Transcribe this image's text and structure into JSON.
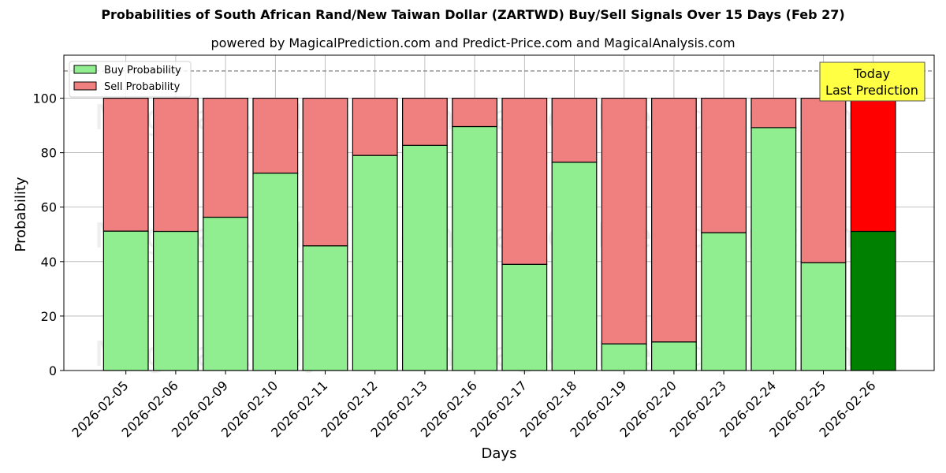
{
  "header": {
    "title": "Probabilities of South African Rand/New Taiwan Dollar (ZARTWD) Buy/Sell Signals Over 15 Days (Feb 27)",
    "subtitle": "powered by MagicalPrediction.com and Predict-Price.com and MagicalAnalysis.com"
  },
  "legend": {
    "items": [
      {
        "label": "Buy Probability",
        "color": "#90ee90"
      },
      {
        "label": "Sell Probability",
        "color": "#f08080"
      }
    ]
  },
  "annotation": {
    "line1": "Today",
    "line2": "Last Prediction",
    "bg_color": "#ffff44"
  },
  "watermarks": {
    "left": "MagicalAnalysis.com",
    "right": "MagicalPrediction.com"
  },
  "colors": {
    "buy": "#90ee90",
    "sell": "#f08080",
    "buy_today": "#008000",
    "sell_today": "#ff0000",
    "grid": "#b0b0b0"
  },
  "chart_data": {
    "type": "bar",
    "stacked": true,
    "title": "Probabilities of South African Rand/New Taiwan Dollar (ZARTWD) Buy/Sell Signals Over 15 Days (Feb 27)",
    "subtitle": "powered by MagicalPrediction.com and Predict-Price.com and MagicalAnalysis.com",
    "xlabel": "Days",
    "ylabel": "Probability",
    "ylim": [
      0,
      115.8
    ],
    "yticks": [
      0,
      20,
      40,
      60,
      80,
      100
    ],
    "grid": true,
    "legend_position": "upper left",
    "reference_line": {
      "y": 110,
      "style": "dashed",
      "color": "#808080"
    },
    "categories": [
      "2026-02-05",
      "2026-02-06",
      "2026-02-09",
      "2026-02-10",
      "2026-02-11",
      "2026-02-12",
      "2026-02-13",
      "2026-02-16",
      "2026-02-17",
      "2026-02-18",
      "2026-02-19",
      "2026-02-20",
      "2026-02-23",
      "2026-02-24",
      "2026-02-25",
      "2026-02-26"
    ],
    "series": [
      {
        "name": "Buy Probability",
        "values": [
          51.2,
          51.1,
          56.3,
          72.5,
          45.8,
          79.0,
          82.7,
          89.6,
          39.0,
          76.5,
          9.8,
          10.5,
          50.6,
          89.2,
          39.6,
          51.1
        ]
      },
      {
        "name": "Sell Probability",
        "values": [
          48.8,
          48.9,
          43.7,
          27.5,
          54.2,
          21.0,
          17.3,
          10.4,
          61.0,
          23.5,
          90.2,
          89.5,
          49.4,
          10.8,
          60.4,
          48.9
        ]
      }
    ],
    "highlight": {
      "category": "2026-02-26",
      "label": "Today Last Prediction"
    }
  }
}
